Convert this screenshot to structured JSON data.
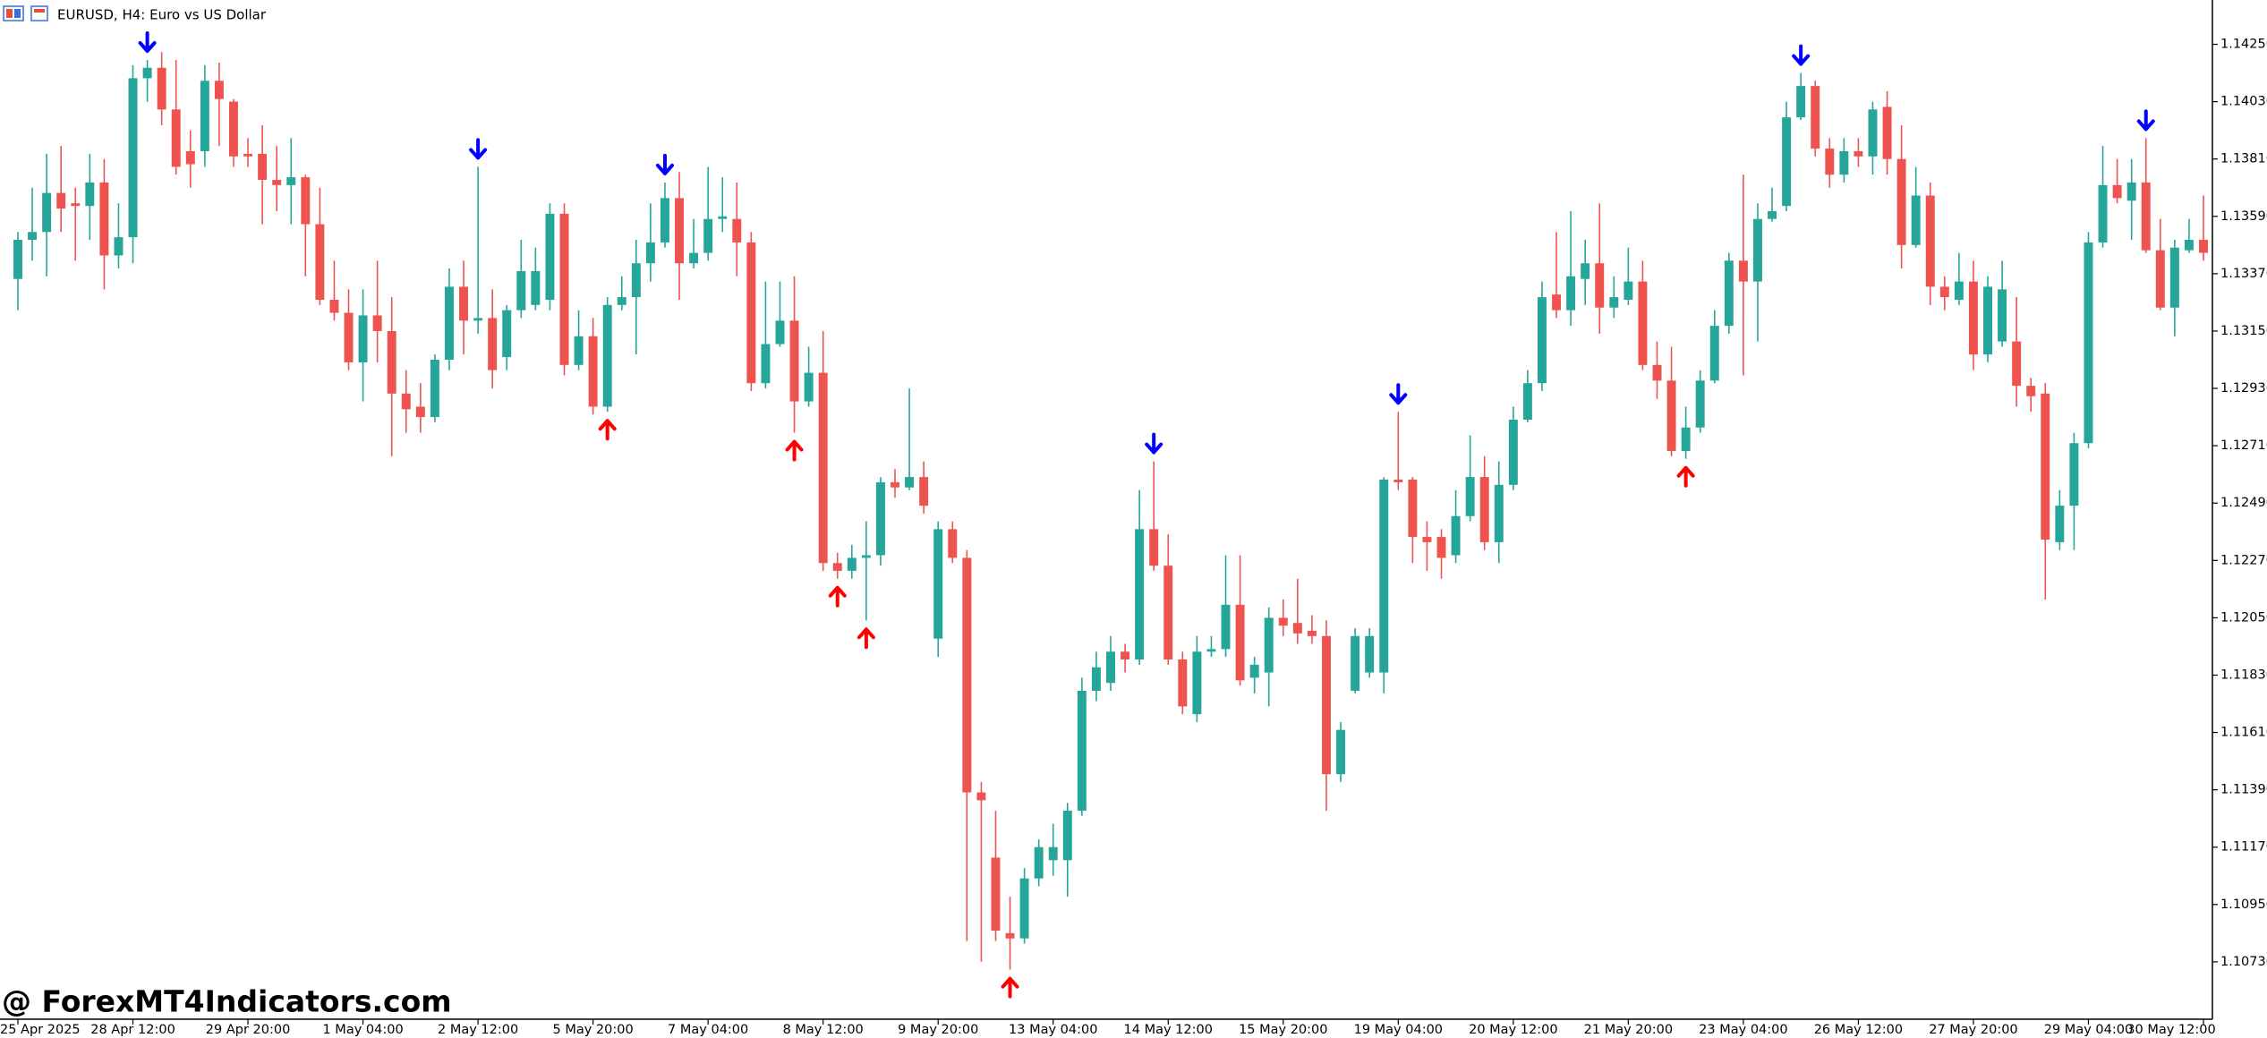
{
  "chart_data": {
    "type": "candlestick",
    "title": "EURUSD, H4:  Euro vs US Dollar",
    "watermark": "@ ForexMT4Indicators.com",
    "up_color": "#26a69a",
    "down_color": "#ef5350",
    "ylim": [
      1.1051,
      1.1442
    ],
    "yticks": [
      {
        "value": 1.1073,
        "label": "1.10730"
      },
      {
        "value": 1.1095,
        "label": "1.10950"
      },
      {
        "value": 1.1117,
        "label": "1.11170"
      },
      {
        "value": 1.1139,
        "label": "1.11390"
      },
      {
        "value": 1.1161,
        "label": "1.11610"
      },
      {
        "value": 1.1183,
        "label": "1.11830"
      },
      {
        "value": 1.1205,
        "label": "1.12050"
      },
      {
        "value": 1.1227,
        "label": "1.12270"
      },
      {
        "value": 1.1249,
        "label": "1.12490"
      },
      {
        "value": 1.1271,
        "label": "1.12710"
      },
      {
        "value": 1.1293,
        "label": "1.12930"
      },
      {
        "value": 1.1315,
        "label": "1.13150"
      },
      {
        "value": 1.1337,
        "label": "1.13370"
      },
      {
        "value": 1.1359,
        "label": "1.13590"
      },
      {
        "value": 1.1381,
        "label": "1.13810"
      },
      {
        "value": 1.1403,
        "label": "1.14030"
      },
      {
        "value": 1.1425,
        "label": "1.14250"
      }
    ],
    "categories": [
      "25 Apr 2025",
      null,
      null,
      null,
      null,
      null,
      null,
      null,
      "28 Apr 12:00",
      null,
      null,
      null,
      null,
      null,
      null,
      null,
      "29 Apr 20:00",
      null,
      null,
      null,
      null,
      null,
      null,
      null,
      "1 May 04:00",
      null,
      null,
      null,
      null,
      null,
      null,
      null,
      "2 May 12:00",
      null,
      null,
      null,
      null,
      null,
      null,
      null,
      "5 May 20:00",
      null,
      null,
      null,
      null,
      null,
      null,
      null,
      "7 May 04:00",
      null,
      null,
      null,
      null,
      null,
      null,
      null,
      "8 May 12:00",
      null,
      null,
      null,
      null,
      null,
      null,
      null,
      "9 May 20:00",
      null,
      null,
      null,
      null,
      null,
      null,
      null,
      "13 May 04:00",
      null,
      null,
      null,
      null,
      null,
      null,
      null,
      "14 May 12:00",
      null,
      null,
      null,
      null,
      null,
      null,
      null,
      "15 May 20:00",
      null,
      null,
      null,
      null,
      null,
      null,
      null,
      "19 May 04:00",
      null,
      null,
      null,
      null,
      null,
      null,
      null,
      "20 May 12:00",
      null,
      null,
      null,
      null,
      null,
      null,
      null,
      "21 May 20:00",
      null,
      null,
      null,
      null,
      null,
      null,
      null,
      "23 May 04:00",
      null,
      null,
      null,
      null,
      null,
      null,
      null,
      "26 May 12:00",
      null,
      null,
      null,
      null,
      null,
      null,
      null,
      "27 May 20:00",
      null,
      null,
      null,
      null,
      null,
      null,
      null,
      "29 May 04:00",
      null,
      null,
      null,
      null,
      null,
      null,
      null,
      "30 May 12:00"
    ],
    "open": [
      1.1335,
      1.135,
      1.1353,
      1.1368,
      1.1364,
      1.1363,
      1.1372,
      1.1344,
      1.1351,
      1.1412,
      1.1416,
      1.14,
      1.1384,
      1.1384,
      1.1411,
      1.1403,
      1.1383,
      1.1383,
      1.1373,
      1.1371,
      1.1374,
      1.1356,
      1.1327,
      1.1322,
      1.1303,
      1.1321,
      1.1315,
      1.1291,
      1.1286,
      1.1282,
      1.1304,
      1.1332,
      1.1319,
      1.132,
      1.1305,
      1.1323,
      1.1325,
      1.1327,
      1.136,
      1.1302,
      1.1313,
      1.1286,
      1.1325,
      1.1328,
      1.1341,
      1.1349,
      1.1366,
      1.1341,
      1.1345,
      1.1358,
      1.1358,
      1.1349,
      1.1295,
      1.131,
      1.1319,
      1.1288,
      1.1299,
      1.1226,
      1.1223,
      1.1228,
      1.1229,
      1.1257,
      1.1255,
      1.1259,
      1.1197,
      1.1239,
      1.1228,
      1.1138,
      1.1113,
      1.1084,
      1.1082,
      1.1105,
      1.1112,
      1.1112,
      1.1131,
      1.1177,
      1.118,
      1.1192,
      1.1189,
      1.1239,
      1.1225,
      1.1189,
      1.1168,
      1.1192,
      1.1193,
      1.121,
      1.1182,
      1.1184,
      1.1205,
      1.1203,
      1.12,
      1.1198,
      1.1145,
      1.1177,
      1.1184,
      1.1184,
      1.1258,
      1.1258,
      1.1236,
      1.1236,
      1.1229,
      1.1244,
      1.1259,
      1.1234,
      1.1256,
      1.1281,
      1.1295,
      1.1329,
      1.1323,
      1.1335,
      1.1341,
      1.1324,
      1.1327,
      1.1334,
      1.1302,
      1.1296,
      1.1269,
      1.1278,
      1.1296,
      1.1317,
      1.1342,
      1.1334,
      1.1358,
      1.1363,
      1.1397,
      1.1409,
      1.1385,
      1.1375,
      1.1384,
      1.1382,
      1.1401,
      1.1381,
      1.1348,
      1.1367,
      1.1332,
      1.1327,
      1.1334,
      1.1306,
      1.1311,
      1.1311,
      1.1294,
      1.1291,
      1.1234,
      1.1248,
      1.1272,
      1.1349,
      1.1371,
      1.1365,
      1.1372,
      1.1346,
      1.1324,
      1.1346,
      1.135
    ],
    "high": [
      1.1353,
      1.137,
      1.1383,
      1.1386,
      1.137,
      1.1383,
      1.1381,
      1.1364,
      1.1417,
      1.1419,
      1.1422,
      1.1419,
      1.1392,
      1.1417,
      1.1418,
      1.1404,
      1.1389,
      1.1394,
      1.1386,
      1.1389,
      1.1375,
      1.137,
      1.1342,
      1.1331,
      1.1331,
      1.1342,
      1.1328,
      1.13,
      1.1295,
      1.1306,
      1.1339,
      1.1342,
      1.1378,
      1.1331,
      1.1325,
      1.135,
      1.1347,
      1.1364,
      1.1364,
      1.1323,
      1.132,
      1.1328,
      1.1336,
      1.135,
      1.1364,
      1.1372,
      1.1376,
      1.1358,
      1.1378,
      1.1374,
      1.1372,
      1.1353,
      1.1334,
      1.1334,
      1.1336,
      1.1309,
      1.1315,
      1.123,
      1.1233,
      1.1242,
      1.1259,
      1.1262,
      1.1293,
      1.1265,
      1.1242,
      1.1242,
      1.1231,
      1.1142,
      1.1131,
      1.1098,
      1.1109,
      1.112,
      1.1126,
      1.1134,
      1.1182,
      1.1192,
      1.1198,
      1.1195,
      1.1254,
      1.1265,
      1.1237,
      1.1192,
      1.1198,
      1.1198,
      1.1229,
      1.1229,
      1.119,
      1.1209,
      1.1212,
      1.122,
      1.1206,
      1.1204,
      1.1165,
      1.1201,
      1.1201,
      1.1259,
      1.1284,
      1.1259,
      1.1242,
      1.1239,
      1.1254,
      1.1275,
      1.1267,
      1.1265,
      1.1286,
      1.13,
      1.1334,
      1.1353,
      1.1361,
      1.135,
      1.1364,
      1.1336,
      1.1347,
      1.1342,
      1.1311,
      1.1309,
      1.1286,
      1.13,
      1.1323,
      1.1345,
      1.1375,
      1.1364,
      1.137,
      1.1403,
      1.1414,
      1.1411,
      1.1389,
      1.1389,
      1.1389,
      1.1403,
      1.1407,
      1.1394,
      1.1378,
      1.1372,
      1.1336,
      1.1345,
      1.1342,
      1.1336,
      1.1342,
      1.1328,
      1.1297,
      1.1295,
      1.1254,
      1.1276,
      1.1353,
      1.1386,
      1.1381,
      1.1381,
      1.1389,
      1.1358,
      1.135,
      1.1358,
      1.1367
    ],
    "low": [
      1.1323,
      1.1342,
      1.1336,
      1.1353,
      1.1342,
      1.135,
      1.1331,
      1.1339,
      1.1341,
      1.1403,
      1.1394,
      1.1375,
      1.137,
      1.1378,
      1.1386,
      1.1378,
      1.1378,
      1.1356,
      1.1361,
      1.1356,
      1.1336,
      1.1325,
      1.1319,
      1.13,
      1.1288,
      1.1303,
      1.1267,
      1.1276,
      1.1276,
      1.128,
      1.13,
      1.1306,
      1.1314,
      1.1293,
      1.13,
      1.132,
      1.1323,
      1.1323,
      1.1298,
      1.13,
      1.1283,
      1.1284,
      1.1323,
      1.1306,
      1.1334,
      1.1347,
      1.1327,
      1.1339,
      1.1342,
      1.1353,
      1.1336,
      1.1292,
      1.1293,
      1.1309,
      1.1276,
      1.1286,
      1.1223,
      1.122,
      1.122,
      1.1204,
      1.1225,
      1.1251,
      1.1254,
      1.1245,
      1.119,
      1.1226,
      1.1081,
      1.1073,
      1.1081,
      1.107,
      1.108,
      1.1102,
      1.1106,
      1.1098,
      1.1129,
      1.1173,
      1.1177,
      1.1184,
      1.1187,
      1.1223,
      1.1187,
      1.1168,
      1.1165,
      1.119,
      1.119,
      1.1179,
      1.1176,
      1.1171,
      1.1198,
      1.1195,
      1.1195,
      1.1131,
      1.1142,
      1.1176,
      1.1182,
      1.1176,
      1.1254,
      1.1226,
      1.1223,
      1.122,
      1.1226,
      1.1242,
      1.1231,
      1.1226,
      1.1254,
      1.128,
      1.1292,
      1.132,
      1.1317,
      1.1325,
      1.1314,
      1.132,
      1.1325,
      1.13,
      1.1289,
      1.1267,
      1.1266,
      1.1276,
      1.1295,
      1.1314,
      1.1298,
      1.1311,
      1.1357,
      1.1361,
      1.1396,
      1.1382,
      1.137,
      1.1372,
      1.1378,
      1.1375,
      1.1375,
      1.1339,
      1.1347,
      1.1325,
      1.1323,
      1.1325,
      1.13,
      1.1303,
      1.1309,
      1.1286,
      1.1284,
      1.1212,
      1.1231,
      1.1231,
      1.127,
      1.1347,
      1.1364,
      1.135,
      1.1345,
      1.1323,
      1.1313,
      1.1345,
      1.1342
    ],
    "close": [
      1.135,
      1.1353,
      1.1368,
      1.1362,
      1.1363,
      1.1372,
      1.1344,
      1.1351,
      1.1412,
      1.1416,
      1.14,
      1.1378,
      1.1379,
      1.1411,
      1.1404,
      1.1382,
      1.1382,
      1.1373,
      1.1371,
      1.1374,
      1.1356,
      1.1327,
      1.1322,
      1.1303,
      1.1321,
      1.1315,
      1.1291,
      1.1285,
      1.1282,
      1.1304,
      1.1332,
      1.1319,
      1.132,
      1.13,
      1.1323,
      1.1338,
      1.1338,
      1.136,
      1.1302,
      1.1313,
      1.1286,
      1.1325,
      1.1328,
      1.1341,
      1.1349,
      1.1366,
      1.1341,
      1.1345,
      1.1358,
      1.1359,
      1.1349,
      1.1295,
      1.131,
      1.1319,
      1.1288,
      1.1299,
      1.1226,
      1.1223,
      1.1228,
      1.1229,
      1.1257,
      1.1255,
      1.1259,
      1.1248,
      1.1239,
      1.1228,
      1.1138,
      1.1135,
      1.1085,
      1.1082,
      1.1105,
      1.1117,
      1.1117,
      1.1131,
      1.1177,
      1.1186,
      1.1192,
      1.1189,
      1.1239,
      1.1225,
      1.1189,
      1.1171,
      1.1192,
      1.1193,
      1.121,
      1.1181,
      1.1187,
      1.1205,
      1.1202,
      1.1199,
      1.1198,
      1.1145,
      1.1162,
      1.1198,
      1.1198,
      1.1258,
      1.1257,
      1.1236,
      1.1234,
      1.1228,
      1.1244,
      1.1259,
      1.1234,
      1.1256,
      1.1281,
      1.1295,
      1.1328,
      1.1323,
      1.1336,
      1.1341,
      1.1324,
      1.1328,
      1.1334,
      1.1302,
      1.1296,
      1.1269,
      1.1278,
      1.1296,
      1.1317,
      1.1342,
      1.1334,
      1.1358,
      1.1361,
      1.1397,
      1.1409,
      1.1385,
      1.1375,
      1.1384,
      1.1382,
      1.14,
      1.1381,
      1.1348,
      1.1367,
      1.1332,
      1.1328,
      1.1334,
      1.1306,
      1.1332,
      1.1331,
      1.1294,
      1.129,
      1.1235,
      1.1248,
      1.1272,
      1.1349,
      1.1371,
      1.1366,
      1.1372,
      1.1346,
      1.1324,
      1.1347,
      1.135,
      1.1345
    ],
    "sell_arrows": {
      "color": "#0000ff",
      "bars": [
        9,
        32,
        45,
        79,
        96,
        124,
        148
      ]
    },
    "buy_arrows": {
      "color": "#ff0000",
      "bars": [
        41,
        54,
        57,
        59,
        69,
        116
      ]
    }
  }
}
